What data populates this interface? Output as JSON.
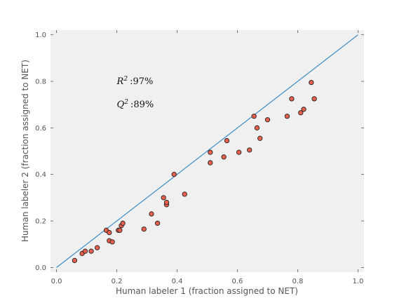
{
  "chart_data": {
    "type": "scatter",
    "xlabel": "Human labeler 1 (fraction assigned to NET)",
    "ylabel": "Human labeler 2 (fraction assigned to NET)",
    "xlim": [
      -0.02,
      1.02
    ],
    "ylim": [
      -0.02,
      1.02
    ],
    "x_ticks": [
      "0.0",
      "0.2",
      "0.4",
      "0.6",
      "0.8",
      "1.0"
    ],
    "y_ticks": [
      "0.0",
      "0.2",
      "0.4",
      "0.6",
      "0.8",
      "1.0"
    ],
    "grid": false,
    "background": "#f0f0f0",
    "identity_line": {
      "x": [
        0,
        1
      ],
      "y": [
        0,
        1
      ],
      "color": "#3a8cc7"
    },
    "marker_color": "#e8604c",
    "annotations": [
      {
        "symbol": "R",
        "superscript": "2",
        "value": ":97%",
        "x": 0.2,
        "y": 0.8
      },
      {
        "symbol": "Q",
        "superscript": "2",
        "value": ":89%",
        "x": 0.2,
        "y": 0.7
      }
    ],
    "points": [
      {
        "x": 0.06,
        "y": 0.03
      },
      {
        "x": 0.085,
        "y": 0.06
      },
      {
        "x": 0.095,
        "y": 0.07
      },
      {
        "x": 0.115,
        "y": 0.07
      },
      {
        "x": 0.135,
        "y": 0.085
      },
      {
        "x": 0.165,
        "y": 0.16
      },
      {
        "x": 0.175,
        "y": 0.15
      },
      {
        "x": 0.175,
        "y": 0.115
      },
      {
        "x": 0.185,
        "y": 0.11
      },
      {
        "x": 0.205,
        "y": 0.16
      },
      {
        "x": 0.21,
        "y": 0.16
      },
      {
        "x": 0.215,
        "y": 0.18
      },
      {
        "x": 0.22,
        "y": 0.19
      },
      {
        "x": 0.29,
        "y": 0.165
      },
      {
        "x": 0.315,
        "y": 0.23
      },
      {
        "x": 0.335,
        "y": 0.19
      },
      {
        "x": 0.355,
        "y": 0.3
      },
      {
        "x": 0.365,
        "y": 0.27
      },
      {
        "x": 0.365,
        "y": 0.28
      },
      {
        "x": 0.39,
        "y": 0.4
      },
      {
        "x": 0.425,
        "y": 0.315
      },
      {
        "x": 0.51,
        "y": 0.45
      },
      {
        "x": 0.51,
        "y": 0.495
      },
      {
        "x": 0.555,
        "y": 0.475
      },
      {
        "x": 0.565,
        "y": 0.545
      },
      {
        "x": 0.605,
        "y": 0.495
      },
      {
        "x": 0.64,
        "y": 0.505
      },
      {
        "x": 0.655,
        "y": 0.65
      },
      {
        "x": 0.665,
        "y": 0.6
      },
      {
        "x": 0.675,
        "y": 0.555
      },
      {
        "x": 0.7,
        "y": 0.635
      },
      {
        "x": 0.765,
        "y": 0.65
      },
      {
        "x": 0.78,
        "y": 0.725
      },
      {
        "x": 0.81,
        "y": 0.665
      },
      {
        "x": 0.82,
        "y": 0.68
      },
      {
        "x": 0.845,
        "y": 0.795
      },
      {
        "x": 0.855,
        "y": 0.725
      }
    ]
  }
}
